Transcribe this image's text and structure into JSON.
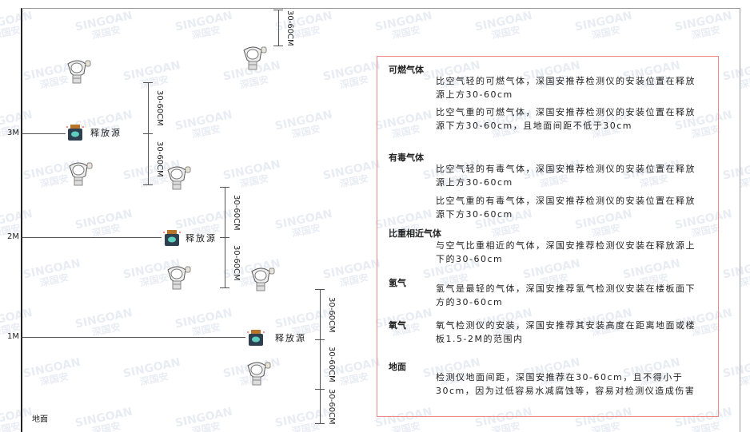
{
  "levels": {
    "m3": "3M",
    "m2": "2M",
    "m1": "1M",
    "ground": "地面"
  },
  "dimension_label": "30-60CM",
  "source_label": "释放源",
  "watermark": {
    "brand": "SINGOAN",
    "cn": "深国安"
  },
  "colors": {
    "box_border": "#e88888",
    "axis": "#222222"
  },
  "notes": [
    {
      "title": "可燃气体",
      "items": [
        "比空气轻的可燃气体，深国安推荐检测仪的安装位置在释放源上方30-60cm",
        "比空气重的可燃气体，深国安推荐检测仪的安装位置在释放源下方30-60cm，且地面间距不低于30cm"
      ]
    },
    {
      "title": "有毒气体",
      "items": [
        "比空气轻的有毒气体，深国安推荐检测仪的安装位置在释放源上方30-60cm",
        "比空气重的有毒气体，深国安推荐检测仪的安装位置在释放源下方30-60cm"
      ]
    },
    {
      "title": "比重相近气体",
      "items": [
        "与空气比重相近的气体，深国安推荐检测仪安装在释放源上下的30-60cm"
      ]
    },
    {
      "title": "氢气",
      "items": [
        "氢气是最轻的气体，深国安推荐氢气检测仪安装在楼板面下方的30-60cm"
      ]
    },
    {
      "title": "氧气",
      "items": [
        "氧气检测仪的安装，深国安推荐其安装高度在距离地面或楼板1.5-2M的范围内"
      ]
    },
    {
      "title": "地面",
      "items": [
        "检测仪地面间距，深国安推荐在30-60cm，且不得小于30cm，因为过低容易水减腐蚀等，容易对检测仪造成伤害"
      ]
    }
  ]
}
